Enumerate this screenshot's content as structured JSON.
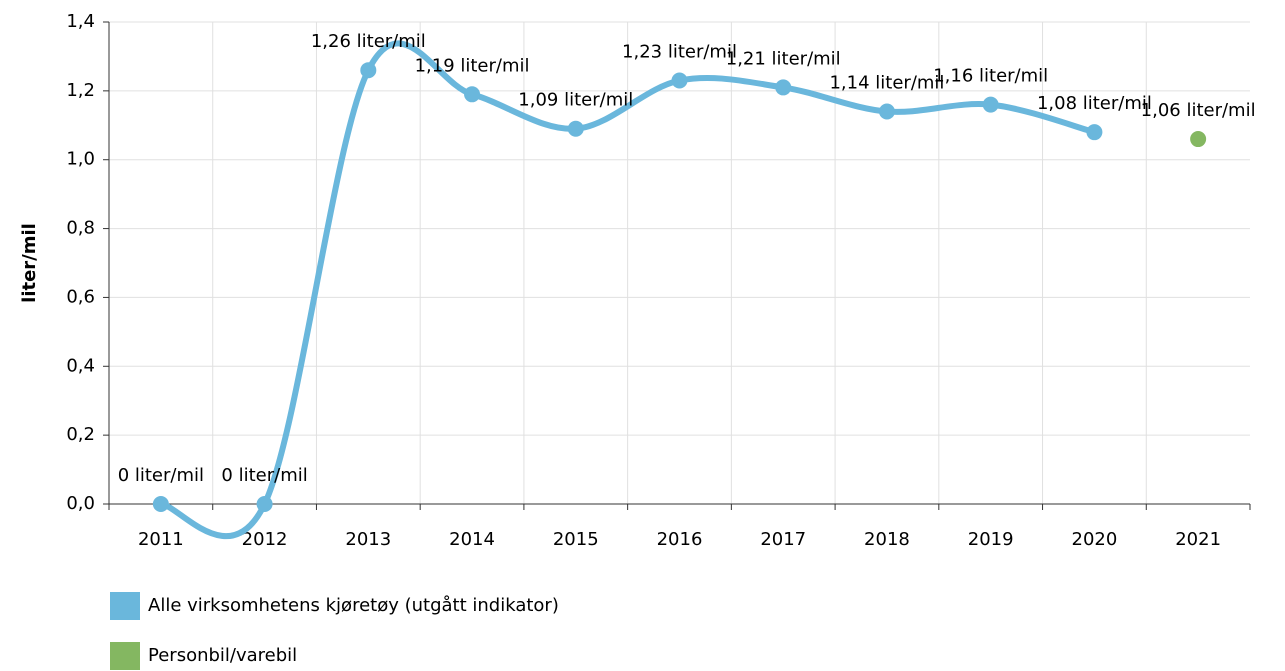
{
  "chart_data": {
    "type": "line",
    "y_axis_label": "liter/mil",
    "categories": [
      "2011",
      "2012",
      "2013",
      "2014",
      "2015",
      "2016",
      "2017",
      "2018",
      "2019",
      "2020",
      "2021"
    ],
    "series": [
      {
        "name": "Alle virksomhetens kjøretøy (utgått indikator)",
        "color": "#6ab7dc",
        "values": [
          0,
          0,
          1.26,
          1.19,
          1.09,
          1.23,
          1.21,
          1.14,
          1.16,
          1.08,
          null
        ],
        "value_labels": [
          "0 liter/mil",
          "0 liter/mil",
          "1,26 liter/mil",
          "1,19 liter/mil",
          "1,09 liter/mil",
          "1,23 liter/mil",
          "1,21 liter/mil",
          "1,14 liter/mil",
          "1,16 liter/mil",
          "1,08 liter/mil",
          null
        ]
      },
      {
        "name": "Personbil/varebil",
        "color": "#84b761",
        "values": [
          null,
          null,
          null,
          null,
          null,
          null,
          null,
          null,
          null,
          null,
          1.06
        ],
        "value_labels": [
          null,
          null,
          null,
          null,
          null,
          null,
          null,
          null,
          null,
          null,
          "1,06 liter/mil"
        ]
      }
    ],
    "ylim": [
      0,
      1.4
    ],
    "yticks": [
      {
        "value": 0,
        "label": "0,0"
      },
      {
        "value": 0.2,
        "label": "0,2"
      },
      {
        "value": 0.4,
        "label": "0,4"
      },
      {
        "value": 0.6,
        "label": "0,6"
      },
      {
        "value": 0.8,
        "label": "0,8"
      },
      {
        "value": 1.0,
        "label": "1,0"
      },
      {
        "value": 1.2,
        "label": "1,2"
      },
      {
        "value": 1.4,
        "label": "1,4"
      }
    ],
    "grid": true,
    "smooth": true
  }
}
